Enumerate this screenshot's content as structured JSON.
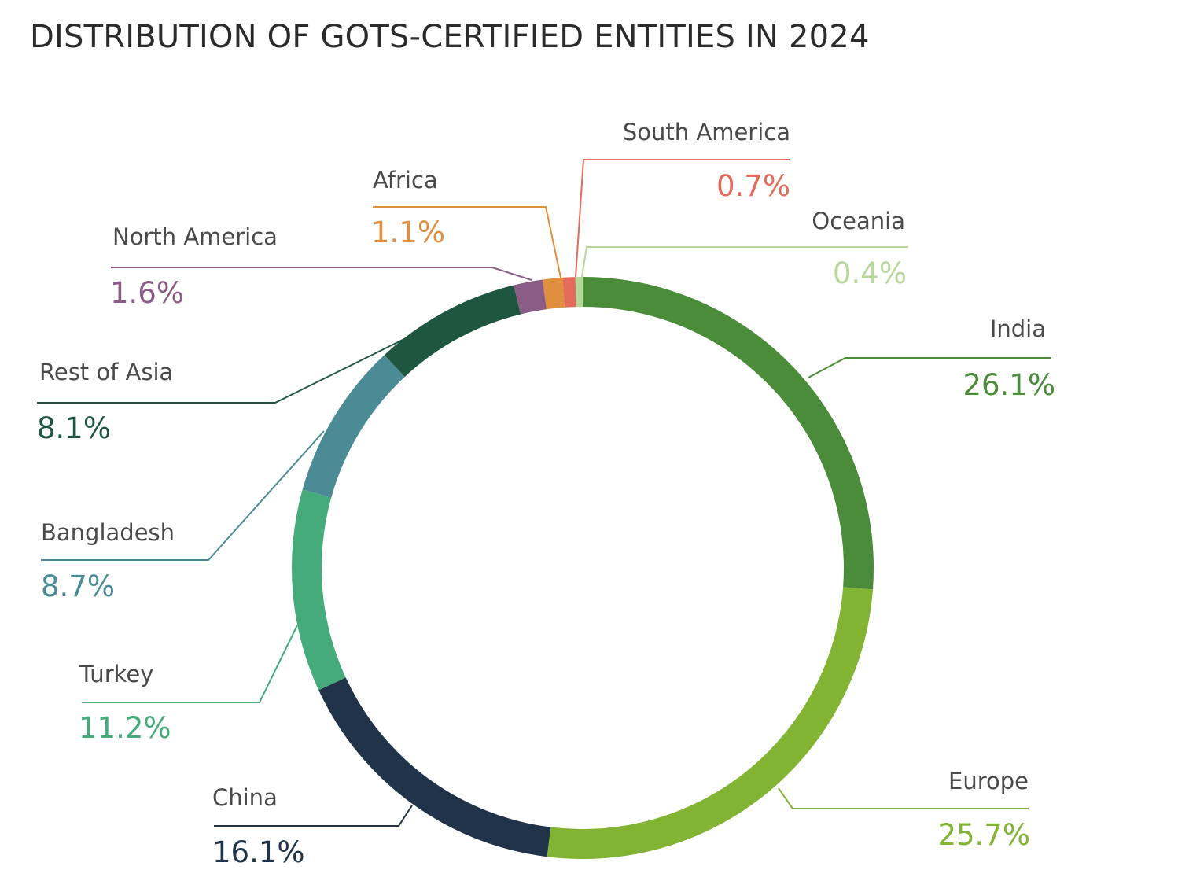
{
  "title": "DISTRIBUTION OF GOTS-CERTIFIED ENTITIES IN 2024",
  "chart_data": {
    "type": "pie",
    "subtype": "donut",
    "title": "DISTRIBUTION OF GOTS-CERTIFIED ENTITIES IN 2024",
    "unit": "%",
    "slices": [
      {
        "name": "India",
        "value": 26.1,
        "label": "26.1%",
        "color": "#4a8c3a"
      },
      {
        "name": "Europe",
        "value": 25.7,
        "label": "25.7%",
        "color": "#82b332"
      },
      {
        "name": "China",
        "value": 16.1,
        "label": "16.1%",
        "color": "#203349"
      },
      {
        "name": "Turkey",
        "value": 11.2,
        "label": "11.2%",
        "color": "#45ab7a"
      },
      {
        "name": "Bangladesh",
        "value": 8.7,
        "label": "8.7%",
        "color": "#4a8b95"
      },
      {
        "name": "Rest of Asia",
        "value": 8.1,
        "label": "8.1%",
        "color": "#1f5641"
      },
      {
        "name": "North America",
        "value": 1.6,
        "label": "1.6%",
        "color": "#8b5c86"
      },
      {
        "name": "Africa",
        "value": 1.1,
        "label": "1.1%",
        "color": "#e08f3f"
      },
      {
        "name": "South America",
        "value": 0.7,
        "label": "0.7%",
        "color": "#e26b5b"
      },
      {
        "name": "Oceania",
        "value": 0.4,
        "label": "0.4%",
        "color": "#b7d89a"
      }
    ]
  }
}
